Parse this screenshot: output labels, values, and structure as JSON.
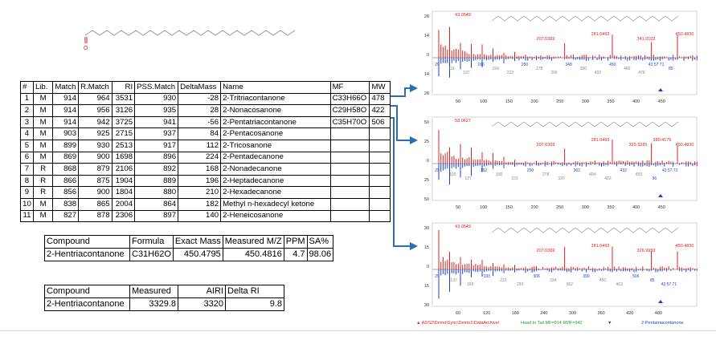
{
  "results": {
    "headers": [
      "#",
      "Lib.",
      "Match",
      "R.Match",
      "RI",
      "PSS.Match",
      "DeltaMass",
      "Name",
      "MF",
      "MW"
    ],
    "rows": [
      [
        "1",
        "M",
        "914",
        "964",
        "3531",
        "930",
        "-28",
        "2-Tritriacontanone",
        "C33H66O",
        "478"
      ],
      [
        "2",
        "M",
        "914",
        "956",
        "3126",
        "935",
        "28",
        "2-Nonacosanone",
        "C29H58O",
        "422"
      ],
      [
        "3",
        "M",
        "914",
        "942",
        "3725",
        "941",
        "-56",
        "2-Pentatriacontanone",
        "C35H70O",
        "506"
      ],
      [
        "4",
        "M",
        "903",
        "925",
        "2715",
        "937",
        "84",
        "2-Pentacosanone",
        "",
        ""
      ],
      [
        "5",
        "M",
        "899",
        "930",
        "2513",
        "917",
        "112",
        "2-Tricosanone",
        "",
        ""
      ],
      [
        "6",
        "M",
        "869",
        "900",
        "1698",
        "896",
        "224",
        "2-Pentadecanone",
        "",
        ""
      ],
      [
        "7",
        "R",
        "868",
        "879",
        "2106",
        "892",
        "168",
        "2-Nonadecanone",
        "",
        ""
      ],
      [
        "8",
        "R",
        "866",
        "875",
        "1904",
        "889",
        "196",
        "2-Heptadecanone",
        "",
        ""
      ],
      [
        "9",
        "R",
        "856",
        "900",
        "1804",
        "880",
        "210",
        "2-Hexadecanone",
        "",
        ""
      ],
      [
        "10",
        "M",
        "838",
        "865",
        "2004",
        "864",
        "182",
        "Methyl n-hexadecyl ketone",
        "",
        ""
      ],
      [
        "11",
        "M",
        "827",
        "878",
        "2306",
        "897",
        "140",
        "2-Heneicosanone",
        "",
        ""
      ]
    ]
  },
  "mass": {
    "headers": [
      "Compound",
      "Formula",
      "Exact Mass",
      "Measured M/Z",
      "PPM",
      "SA%"
    ],
    "row": [
      "2-Hentriacontanone",
      "C31H62O",
      "450.4795",
      "450.4816",
      "4.7",
      "98.06"
    ]
  },
  "ri": {
    "headers": [
      "Compound",
      "Measured",
      "AIRI",
      "Delta RI"
    ],
    "row": [
      "2-Hentriacontanone",
      "3329.8",
      "3320",
      "9.8"
    ]
  },
  "panels": [
    {
      "y_ticks": [
        "28",
        "14",
        "0",
        "14",
        "28"
      ],
      "x_ticks": [
        "50",
        "100",
        "150",
        "200",
        "250",
        "300",
        "350",
        "400",
        "450"
      ],
      "top_labels": [
        "43.0549",
        "207.0369",
        "281.0493",
        "341.0102",
        "450.4830"
      ],
      "bottom_labels": [
        "29",
        "111",
        "137",
        "166",
        "194",
        "222",
        "250",
        "278",
        "306",
        "348",
        "390",
        "432",
        "450",
        "460",
        "478",
        "43.57 71",
        "85"
      ]
    },
    {
      "y_ticks": [
        "50",
        "25",
        "0",
        "25",
        "50"
      ],
      "x_ticks": [
        "50",
        "100",
        "150",
        "200",
        "250",
        "300",
        "350",
        "400",
        "450"
      ],
      "top_labels": [
        "58.0627",
        "207.0369",
        "281.0493",
        "329.3285",
        "380.4175",
        "450.4830"
      ],
      "bottom_labels": [
        "29",
        "109",
        "127",
        "152",
        "180",
        "222",
        "250",
        "278",
        "320",
        "362",
        "404",
        "422",
        "432",
        "450",
        "96",
        "43 57 71"
      ]
    },
    {
      "y_ticks": [
        "30",
        "15",
        "0",
        "15",
        "30"
      ],
      "x_ticks": [
        "60",
        "120",
        "180",
        "240",
        "300",
        "360",
        "420",
        "480"
      ],
      "top_labels": [
        "43.0549",
        "207.0369",
        "281.0493",
        "326.9959",
        "450.4830"
      ],
      "bottom_labels": [
        "29",
        "137",
        "166",
        "193",
        "222",
        "250",
        "306",
        "334",
        "362",
        "390",
        "450",
        "463",
        "506",
        "85",
        "43 57 71"
      ]
    }
  ],
  "footer": {
    "left": "ADS2\\Demo\\Sync\\Demo1\\DataArchive\\",
    "middle": "Head to Tail MF=914 RMF=942",
    "right": "2-Pentatriacontanone"
  },
  "colors": {
    "unknown": "#e02020",
    "library": "#1f3fd0",
    "unique": "#d020d0",
    "missing": "#888888",
    "arrow": "#2f6db3",
    "structure": "#999999",
    "carbonyl": "#e02020"
  }
}
